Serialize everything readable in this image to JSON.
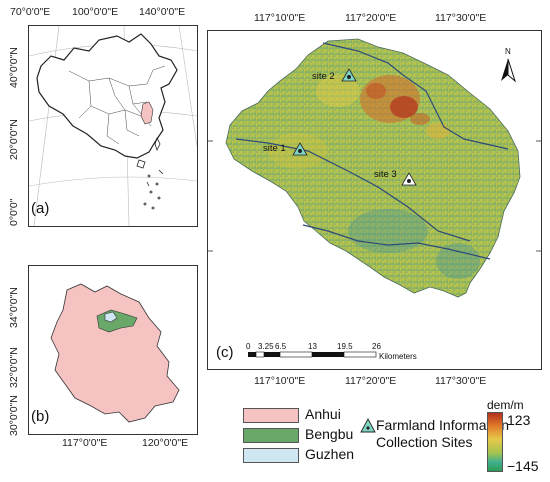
{
  "panel_a": {
    "label": "(a)",
    "top_ticks": [
      "70°0'0\"E",
      "100°0'0\"E",
      "140°0'0\"E"
    ],
    "left_ticks": [
      "40°0'0\"N",
      "20°0'0\"N",
      "0°0'0\""
    ]
  },
  "panel_b": {
    "label": "(b)",
    "bottom_ticks": [
      "117°0'0\"E",
      "120°0'0\"E"
    ],
    "left_ticks": [
      "34°0'0\"N",
      "32°0'0\"N",
      "30°0'0\"N"
    ]
  },
  "panel_c": {
    "label": "(c)",
    "top_ticks": [
      "117°10'0\"E",
      "117°20'0\"E",
      "117°30'0\"E"
    ],
    "bottom_ticks": [
      "117°10'0\"E",
      "117°20'0\"E",
      "117°30'0\"E"
    ],
    "north_label": "N",
    "sites": [
      "site 2",
      "site 1",
      "site 3"
    ],
    "scale_ticks": [
      "0",
      "3.25",
      "6.5",
      "13",
      "19.5",
      "26"
    ],
    "scale_unit": "Kilometers"
  },
  "legend": {
    "anhui": "Anhui",
    "bengbu": "Bengbu",
    "guzhen": "Guzhen",
    "farmland_line1": "Farmland Information",
    "farmland_line2": "Collection Sites",
    "colorbar_title": "dem/m",
    "colorbar_max": "123",
    "colorbar_min": "−145",
    "colors": {
      "anhui": "#f6c3c3",
      "bengbu": "#6aa86a",
      "guzhen": "#cfe6f3"
    }
  }
}
